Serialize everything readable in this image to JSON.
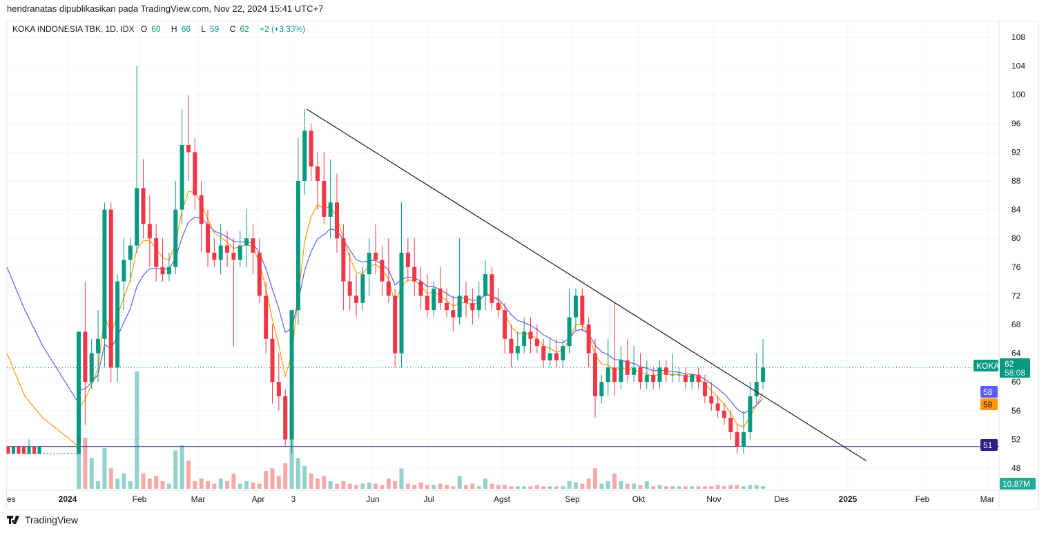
{
  "publisher": "hendranatas dipublikasikan pada TradingView.com, Nov 22, 2024 15:41 UTC+7",
  "legend": {
    "name": "KOKA INDONESIA TBK, 1D, IDX",
    "o_label": "O",
    "o": "60",
    "h_label": "H",
    "h": "66",
    "l_label": "L",
    "l": "59",
    "c_label": "C",
    "c": "62",
    "change": "+2 (+3,33%)"
  },
  "footer": {
    "brand": "TradingView",
    "icon": "tradingview-logo-icon"
  },
  "colors": {
    "up": "#089981",
    "down": "#f23645",
    "ma_blue": "#5b5bf5",
    "ma_orange": "#ff9800",
    "support": "#2e1f87",
    "trendline": "#131722"
  },
  "labels": {
    "symbol": "KOKA",
    "price": "62",
    "countdown": "58:08",
    "ma_blue": "58",
    "ma_orange": "58",
    "support": "51",
    "volume": "10,87M"
  },
  "chart_data": {
    "type": "candlestick",
    "yticks": [
      "108",
      "104",
      "100",
      "96",
      "92",
      "88",
      "84",
      "80",
      "76",
      "72",
      "68",
      "64",
      "60",
      "56",
      "52",
      "48"
    ],
    "xticks": [
      "es",
      "2024",
      "Feb",
      "Mar",
      "Apr",
      "3",
      "Jun",
      "Jul",
      "Agst",
      "Sep",
      "Okt",
      "Nov",
      "Des",
      "2025",
      "Feb",
      "Mar"
    ],
    "pre_gap": [
      [
        51,
        51,
        50,
        50
      ],
      [
        50,
        51,
        50,
        51
      ],
      [
        51,
        51,
        50,
        50
      ],
      [
        51,
        51,
        50,
        50
      ],
      [
        50,
        52,
        50,
        51
      ],
      [
        51,
        51,
        50,
        50
      ],
      [
        50,
        51,
        50,
        51
      ]
    ],
    "gap_price": 50,
    "candles": [
      [
        50,
        67,
        50,
        67
      ],
      [
        67,
        74,
        54,
        60
      ],
      [
        60,
        66,
        59,
        64
      ],
      [
        64,
        70,
        60,
        66
      ],
      [
        66,
        85,
        62,
        84
      ],
      [
        84,
        85,
        60,
        62
      ],
      [
        62,
        75,
        60,
        74
      ],
      [
        74,
        80,
        70,
        77
      ],
      [
        77,
        80,
        74,
        79
      ],
      [
        79,
        104,
        78,
        87
      ],
      [
        87,
        91,
        80,
        82
      ],
      [
        82,
        86,
        76,
        80
      ],
      [
        80,
        82,
        74,
        76
      ],
      [
        76,
        80,
        74,
        75
      ],
      [
        75,
        78,
        74,
        76
      ],
      [
        76,
        88,
        75,
        84
      ],
      [
        84,
        98,
        82,
        93
      ],
      [
        93,
        100,
        88,
        92
      ],
      [
        92,
        94,
        84,
        86
      ],
      [
        86,
        88,
        78,
        82
      ],
      [
        82,
        84,
        76,
        78
      ],
      [
        78,
        80,
        76,
        77
      ],
      [
        77,
        82,
        75,
        79
      ],
      [
        79,
        81,
        76,
        78
      ],
      [
        78,
        80,
        65,
        77
      ],
      [
        77,
        81,
        76,
        79
      ],
      [
        79,
        84,
        76,
        80
      ],
      [
        80,
        82,
        75,
        78
      ],
      [
        78,
        80,
        71,
        72
      ],
      [
        72,
        74,
        64,
        66
      ],
      [
        66,
        68,
        57,
        60
      ],
      [
        60,
        64,
        56,
        58
      ],
      [
        58,
        59,
        51,
        52
      ],
      [
        52,
        70,
        50,
        70
      ],
      [
        70,
        94,
        68,
        88
      ],
      [
        88,
        98,
        86,
        95
      ],
      [
        95,
        96,
        88,
        90
      ],
      [
        90,
        92,
        84,
        88
      ],
      [
        88,
        92,
        82,
        83
      ],
      [
        83,
        91,
        80,
        85
      ],
      [
        85,
        89,
        78,
        80
      ],
      [
        80,
        82,
        70,
        74
      ],
      [
        74,
        78,
        70,
        72
      ],
      [
        72,
        75,
        69,
        71
      ],
      [
        71,
        76,
        70,
        75
      ],
      [
        75,
        80,
        72,
        78
      ],
      [
        78,
        82,
        75,
        77
      ],
      [
        77,
        79,
        72,
        74
      ],
      [
        74,
        80,
        71,
        72
      ],
      [
        72,
        73,
        62,
        64
      ],
      [
        64,
        85,
        62,
        78
      ],
      [
        78,
        80,
        74,
        76
      ],
      [
        76,
        80,
        72,
        74
      ],
      [
        74,
        76,
        70,
        72
      ],
      [
        72,
        75,
        69,
        70
      ],
      [
        70,
        74,
        69,
        73
      ],
      [
        73,
        76,
        70,
        71
      ],
      [
        71,
        73,
        69,
        70
      ],
      [
        70,
        72,
        67,
        69
      ],
      [
        69,
        80,
        68,
        72
      ],
      [
        72,
        74,
        69,
        71
      ],
      [
        71,
        73,
        68,
        70
      ],
      [
        70,
        74,
        69,
        72
      ],
      [
        72,
        77,
        70,
        75
      ],
      [
        75,
        76,
        70,
        71
      ],
      [
        71,
        73,
        69,
        70
      ],
      [
        70,
        71,
        64,
        66
      ],
      [
        66,
        68,
        62,
        64
      ],
      [
        64,
        67,
        63,
        65
      ],
      [
        65,
        69,
        64,
        67
      ],
      [
        67,
        69,
        64,
        66
      ],
      [
        66,
        68,
        64,
        65
      ],
      [
        65,
        66,
        62,
        63
      ],
      [
        63,
        66,
        62,
        64
      ],
      [
        64,
        66,
        62,
        63
      ],
      [
        63,
        66,
        62,
        65
      ],
      [
        65,
        73,
        64,
        69
      ],
      [
        69,
        73,
        67,
        72
      ],
      [
        72,
        73,
        67,
        68
      ],
      [
        68,
        69,
        62,
        64
      ],
      [
        64,
        66,
        55,
        58
      ],
      [
        58,
        61,
        57,
        60
      ],
      [
        60,
        66,
        58,
        62
      ],
      [
        62,
        71,
        58,
        60
      ],
      [
        60,
        65,
        59,
        63
      ],
      [
        63,
        66,
        60,
        61
      ],
      [
        61,
        65,
        60,
        62
      ],
      [
        62,
        64,
        59,
        60
      ],
      [
        60,
        63,
        59,
        61
      ],
      [
        61,
        62,
        59,
        60
      ],
      [
        60,
        63,
        59,
        62
      ],
      [
        62,
        63,
        60,
        61
      ],
      [
        61,
        64,
        60,
        61
      ],
      [
        61,
        62,
        60,
        61
      ],
      [
        61,
        62,
        59,
        60
      ],
      [
        60,
        61,
        59,
        61
      ],
      [
        61,
        62,
        59,
        60
      ],
      [
        60,
        61,
        57,
        58
      ],
      [
        58,
        60,
        56,
        57
      ],
      [
        57,
        58,
        55,
        56
      ],
      [
        56,
        57,
        54,
        55
      ],
      [
        55,
        56,
        52,
        53
      ],
      [
        53,
        54,
        50,
        51
      ],
      [
        51,
        56,
        50,
        53
      ],
      [
        53,
        60,
        52,
        58
      ],
      [
        58,
        64,
        57,
        60
      ],
      [
        60,
        66,
        59,
        62
      ]
    ],
    "volume_m": [
      240,
      200,
      120,
      30,
      160,
      80,
      40,
      60,
      30,
      460,
      60,
      40,
      50,
      30,
      20,
      150,
      170,
      110,
      30,
      40,
      30,
      20,
      40,
      30,
      60,
      20,
      30,
      25,
      20,
      70,
      80,
      50,
      100,
      300,
      120,
      90,
      60,
      40,
      50,
      30,
      20,
      30,
      20,
      15,
      20,
      25,
      20,
      15,
      40,
      30,
      80,
      20,
      15,
      25,
      15,
      15,
      20,
      15,
      10,
      50,
      15,
      20,
      10,
      40,
      20,
      15,
      15,
      10,
      10,
      10,
      10,
      15,
      10,
      10,
      10,
      10,
      30,
      25,
      20,
      40,
      80,
      20,
      30,
      60,
      30,
      20,
      20,
      15,
      30,
      10,
      15,
      10,
      10,
      10,
      10,
      10,
      10,
      10,
      10,
      15,
      10,
      15,
      15,
      10,
      15,
      15,
      10.87
    ],
    "ma_blue_lead": [
      76,
      70,
      65,
      61,
      57
    ],
    "ma_orange_lead": [
      64,
      58,
      55,
      53,
      51
    ],
    "ma_blue_period": 10,
    "ma_orange_period": 5,
    "trendline": {
      "from_price": 98,
      "to_price": 49
    },
    "support_price": 51,
    "last_price": 62
  }
}
